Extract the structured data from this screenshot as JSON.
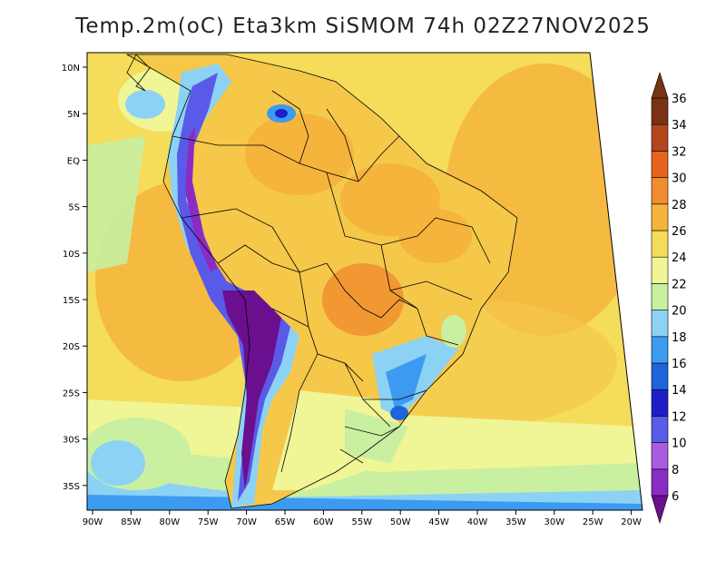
{
  "title": "Temp.2m(oC) Eta3km SiSMOM 74h 02Z27NOV2025",
  "map": {
    "variable": "2m air temperature",
    "units": "oC",
    "lat_labels": [
      "10N",
      "5N",
      "EQ",
      "5S",
      "10S",
      "15S",
      "20S",
      "25S",
      "30S",
      "35S"
    ],
    "lon_labels": [
      "90W",
      "85W",
      "80W",
      "75W",
      "70W",
      "65W",
      "60W",
      "55W",
      "50W",
      "45W",
      "40W",
      "35W",
      "30W",
      "25W",
      "20W"
    ]
  },
  "colorbar": {
    "levels": [
      "6",
      "8",
      "10",
      "12",
      "14",
      "16",
      "18",
      "20",
      "22",
      "24",
      "26",
      "28",
      "30",
      "32",
      "34",
      "36"
    ],
    "colors": [
      "#6a0f8e",
      "#8a2cc4",
      "#a85ce0",
      "#5a5ae8",
      "#1e1ec8",
      "#1e64dc",
      "#3c9bf0",
      "#8cd2f5",
      "#c8f0a0",
      "#f0f596",
      "#f5dc5a",
      "#f5b43c",
      "#f08c2d",
      "#e6641e",
      "#b4461e",
      "#783214"
    ]
  }
}
